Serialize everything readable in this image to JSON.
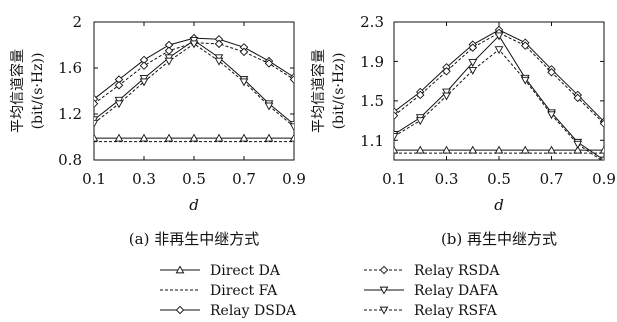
{
  "chart_data": [
    {
      "type": "line",
      "caption": "(a) 非再生中继方式",
      "xlabel": "d",
      "ylabel_line1": "平均信道容量",
      "ylabel_line2": "(bit/(s·Hz))",
      "x": [
        0.1,
        0.2,
        0.3,
        0.4,
        0.5,
        0.6,
        0.7,
        0.8,
        0.9
      ],
      "xlim": [
        0.1,
        0.9
      ],
      "ylim": [
        0.8,
        2.0
      ],
      "xticks": [
        "0.1",
        "0.3",
        "0.5",
        "0.7",
        "0.9"
      ],
      "yticks": [
        "0.8",
        "1.2",
        "1.6",
        "2"
      ],
      "series": [
        {
          "name": "Direct DA",
          "marker": "triangle-up",
          "dash": "solid",
          "values": [
            0.99,
            0.99,
            0.99,
            0.99,
            0.99,
            0.99,
            0.99,
            0.99,
            0.99
          ]
        },
        {
          "name": "Direct FA",
          "marker": "none",
          "dash": "dashed",
          "values": [
            0.96,
            0.96,
            0.96,
            0.96,
            0.96,
            0.96,
            0.96,
            0.96,
            0.96
          ]
        },
        {
          "name": "Relay DSDA",
          "marker": "diamond",
          "dash": "solid",
          "values": [
            1.33,
            1.5,
            1.67,
            1.8,
            1.86,
            1.85,
            1.78,
            1.66,
            1.52
          ]
        },
        {
          "name": "Relay RSDA",
          "marker": "diamond",
          "dash": "dashed",
          "values": [
            1.29,
            1.45,
            1.62,
            1.75,
            1.82,
            1.81,
            1.74,
            1.64,
            1.5
          ]
        },
        {
          "name": "Relay DAFA",
          "marker": "triangle-down",
          "dash": "solid",
          "values": [
            1.15,
            1.32,
            1.51,
            1.69,
            1.84,
            1.69,
            1.5,
            1.29,
            1.11
          ]
        },
        {
          "name": "Relay RSFA",
          "marker": "triangle-down",
          "dash": "dashed",
          "values": [
            1.12,
            1.29,
            1.48,
            1.66,
            1.81,
            1.66,
            1.48,
            1.27,
            1.09
          ]
        }
      ]
    },
    {
      "type": "line",
      "caption": "(b) 再生中继方式",
      "xlabel": "d",
      "ylabel_line1": "平均信道容量",
      "ylabel_line2": "(bit/(s·Hz))",
      "x": [
        0.1,
        0.2,
        0.3,
        0.4,
        0.5,
        0.6,
        0.7,
        0.8,
        0.9
      ],
      "xlim": [
        0.1,
        0.9
      ],
      "ylim": [
        0.9,
        2.3
      ],
      "xticks": [
        "0.1",
        "0.3",
        "0.5",
        "0.7",
        "0.9"
      ],
      "yticks": [
        "1.1",
        "1.5",
        "1.9",
        "2.3"
      ],
      "series": [
        {
          "name": "Direct DA",
          "marker": "triangle-up",
          "dash": "solid",
          "values": [
            1.0,
            1.0,
            1.0,
            1.0,
            1.0,
            1.0,
            1.0,
            1.0,
            1.0
          ]
        },
        {
          "name": "Direct FA",
          "marker": "none",
          "dash": "dashed",
          "values": [
            0.97,
            0.97,
            0.97,
            0.97,
            0.97,
            0.97,
            0.97,
            0.97,
            0.97
          ]
        },
        {
          "name": "Relay DSDA",
          "marker": "diamond",
          "dash": "solid",
          "values": [
            1.39,
            1.59,
            1.84,
            2.07,
            2.22,
            2.09,
            1.82,
            1.56,
            1.29
          ]
        },
        {
          "name": "Relay RSDA",
          "marker": "diamond",
          "dash": "dashed",
          "values": [
            1.35,
            1.56,
            1.8,
            2.04,
            2.19,
            2.06,
            1.79,
            1.53,
            1.27
          ]
        },
        {
          "name": "Relay DAFA",
          "marker": "triangle-down",
          "dash": "solid",
          "values": [
            1.16,
            1.33,
            1.59,
            1.89,
            2.16,
            1.73,
            1.38,
            1.08,
            0.9
          ]
        },
        {
          "name": "Relay RSFA",
          "marker": "triangle-down",
          "dash": "dashed",
          "values": [
            1.14,
            1.3,
            1.55,
            1.81,
            2.02,
            1.71,
            1.36,
            1.06,
            0.88
          ]
        }
      ]
    }
  ],
  "legend": [
    "Direct DA",
    "Direct FA",
    "Relay DSDA",
    "Relay RSDA",
    "Relay DAFA",
    "Relay RSFA"
  ]
}
